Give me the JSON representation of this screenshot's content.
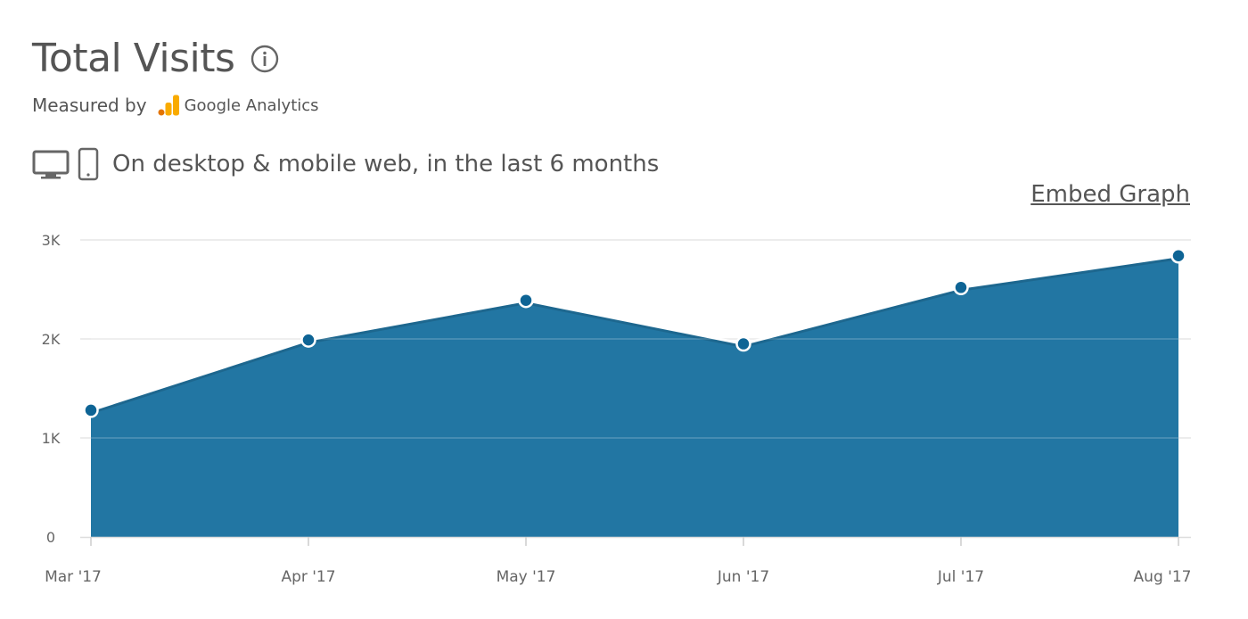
{
  "header": {
    "title": "Total Visits",
    "measured_by_label": "Measured by",
    "provider_name": "Google Analytics",
    "scope_text": "On desktop & mobile web, in the last 6 months",
    "embed_link_label": "Embed Graph"
  },
  "icons": {
    "info": "info-icon",
    "provider_logo": "google-analytics-logo",
    "desktop": "desktop-icon",
    "mobile": "mobile-icon"
  },
  "colors": {
    "area_fill": "#2276a3",
    "marker": "#0e6495",
    "line": "#ffffff",
    "text": "#555555"
  },
  "chart_data": {
    "type": "area",
    "categories": [
      "Mar '17",
      "Apr '17",
      "May '17",
      "Jun '17",
      "Jul '17",
      "Aug '17"
    ],
    "values": [
      1280,
      1990,
      2390,
      1950,
      2520,
      2840
    ],
    "ylim": [
      0,
      3000
    ],
    "yticks": [
      0,
      1000,
      2000,
      3000
    ],
    "ytick_labels": [
      "0",
      "1K",
      "2K",
      "3K"
    ],
    "grid": true,
    "legend": "none",
    "title": "Total Visits"
  }
}
